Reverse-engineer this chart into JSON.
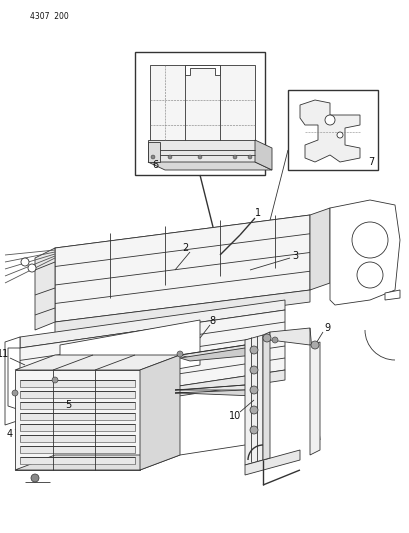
{
  "page_id": "4307  200",
  "bg_color": "#ffffff",
  "lc": "#333333",
  "fig_width": 4.1,
  "fig_height": 5.33,
  "dpi": 100
}
